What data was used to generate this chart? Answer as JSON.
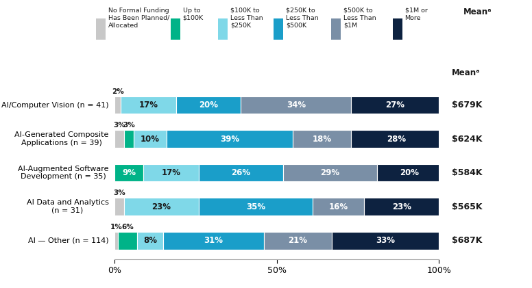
{
  "categories": [
    "AI/Computer Vision (n = 41)",
    "AI-Generated Composite\nApplications (n = 39)",
    "AI-Augmented Software\nDevelopment (n = 35)",
    "AI Data and Analytics\n(n = 31)",
    "AI — Other (n = 114)"
  ],
  "means": [
    "$679K",
    "$624K",
    "$584K",
    "$565K",
    "$687K"
  ],
  "segments": {
    "no_formal": [
      2,
      3,
      0,
      3,
      1
    ],
    "up_to_100k": [
      0,
      3,
      9,
      0,
      6
    ],
    "100k_250k": [
      17,
      10,
      17,
      23,
      8
    ],
    "250k_500k": [
      20,
      39,
      26,
      35,
      31
    ],
    "500k_1m": [
      34,
      18,
      29,
      16,
      21
    ],
    "1m_plus": [
      27,
      28,
      20,
      23,
      33
    ]
  },
  "colors": [
    "#c8c8c8",
    "#00b388",
    "#7fd8e8",
    "#1a9ec9",
    "#7a8fa6",
    "#0d2240"
  ],
  "legend_labels": [
    "No Formal Funding\nHas Been Planned/\nAllocated",
    "Up to\n$100K",
    "$100K to\nLess Than\n$250K",
    "$250K to\nLess Than\n$500K",
    "$500K to\nLess Than\n$1M",
    "$1M or\nMore"
  ],
  "mean_label": "Meanᵃ",
  "xlabel_ticks": [
    0,
    50,
    100
  ],
  "xlabel_labels": [
    "0%",
    "50%",
    "100%"
  ],
  "bar_height": 0.52,
  "background_color": "#ffffff",
  "text_color": "#1a1a1a",
  "white_text_color": "#ffffff",
  "dark_text_segments": [
    1,
    3,
    4,
    5
  ],
  "black_text_segments": [
    0,
    2
  ]
}
